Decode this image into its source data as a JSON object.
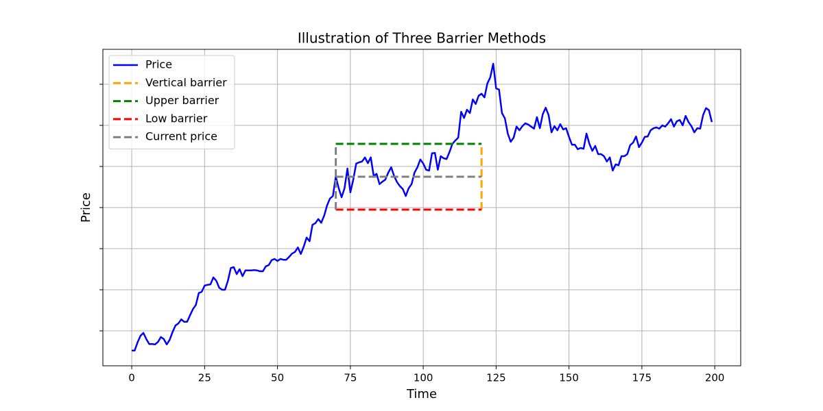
{
  "chart_data": {
    "type": "line",
    "title": "Illustration of Three Barrier Methods",
    "xlabel": "Time",
    "ylabel": "Price",
    "xlim": [
      -9.9,
      208.9
    ],
    "xticks": [
      0,
      25,
      50,
      75,
      100,
      125,
      150,
      175,
      200
    ],
    "ylim": [
      0.15,
      7.85
    ],
    "yticks": [
      1,
      2,
      3,
      4,
      5,
      6,
      7
    ],
    "grid": true,
    "legend": "upper left",
    "series": [
      {
        "name": "Price",
        "color": "#0000ff",
        "style": "solid",
        "x": [
          0,
          1,
          2,
          3,
          4,
          5,
          6,
          7,
          8,
          9,
          10,
          11,
          12,
          13,
          14,
          15,
          16,
          17,
          18,
          19,
          20,
          21,
          22,
          23,
          24,
          25,
          26,
          27,
          28,
          29,
          30,
          31,
          32,
          33,
          34,
          35,
          36,
          37,
          38,
          39,
          40,
          41,
          42,
          43,
          44,
          45,
          46,
          47,
          48,
          49,
          50,
          51,
          52,
          53,
          54,
          55,
          56,
          57,
          58,
          59,
          60,
          61,
          62,
          63,
          64,
          65,
          66,
          67,
          68,
          69,
          70,
          71,
          72,
          73,
          74,
          75,
          76,
          77,
          78,
          79,
          80,
          81,
          82,
          83,
          84,
          85,
          86,
          87,
          88,
          89,
          90,
          91,
          92,
          93,
          94,
          95,
          96,
          97,
          98,
          99,
          100,
          101,
          102,
          103,
          104,
          105,
          106,
          107,
          108,
          109,
          110,
          111,
          112,
          113,
          114,
          115,
          116,
          117,
          118,
          119,
          120,
          121,
          122,
          123,
          124,
          125,
          126,
          127,
          128,
          129,
          130,
          131,
          132,
          133,
          134,
          135,
          136,
          137,
          138,
          139,
          140,
          141,
          142,
          143,
          144,
          145,
          146,
          147,
          148,
          149,
          150,
          151,
          152,
          153,
          154,
          155,
          156,
          157,
          158,
          159,
          160,
          161,
          162,
          163,
          164,
          165,
          166,
          167,
          168,
          169,
          170,
          171,
          172,
          173,
          174,
          175,
          176,
          177,
          178,
          179,
          180,
          181,
          182,
          183,
          184,
          185,
          186,
          187,
          188,
          189,
          190,
          191,
          192,
          193,
          194,
          195,
          196,
          197,
          198,
          199
        ],
        "values": [
          0.52,
          0.52,
          0.72,
          0.88,
          0.95,
          0.8,
          0.68,
          0.68,
          0.67,
          0.73,
          0.85,
          0.8,
          0.67,
          0.78,
          0.97,
          1.13,
          1.18,
          1.28,
          1.22,
          1.22,
          1.38,
          1.53,
          1.63,
          1.92,
          1.95,
          2.1,
          2.12,
          2.13,
          2.3,
          2.22,
          2.05,
          2.0,
          2.0,
          2.22,
          2.53,
          2.55,
          2.38,
          2.5,
          2.33,
          2.47,
          2.47,
          2.47,
          2.48,
          2.47,
          2.45,
          2.45,
          2.57,
          2.6,
          2.72,
          2.75,
          2.7,
          2.75,
          2.73,
          2.73,
          2.8,
          2.88,
          2.92,
          3.03,
          2.87,
          3.05,
          3.27,
          3.18,
          3.58,
          3.62,
          3.72,
          3.63,
          3.8,
          4.05,
          4.22,
          4.28,
          4.75,
          4.47,
          4.25,
          4.47,
          4.95,
          4.37,
          4.68,
          5.07,
          5.1,
          5.12,
          5.22,
          5.08,
          5.22,
          4.77,
          4.82,
          4.57,
          4.63,
          4.68,
          4.85,
          4.98,
          4.77,
          4.62,
          4.52,
          4.45,
          4.28,
          4.47,
          4.57,
          4.85,
          4.98,
          5.17,
          5.07,
          4.92,
          4.9,
          5.32,
          5.33,
          4.92,
          5.25,
          5.2,
          5.18,
          5.35,
          5.55,
          5.63,
          5.7,
          6.33,
          6.18,
          6.38,
          6.3,
          6.63,
          6.52,
          6.72,
          6.77,
          6.68,
          7.02,
          7.17,
          7.5,
          6.9,
          6.87,
          6.3,
          6.17,
          5.8,
          5.6,
          5.7,
          5.97,
          5.88,
          5.98,
          6.05,
          6.02,
          5.97,
          5.92,
          6.2,
          5.93,
          6.27,
          6.43,
          6.25,
          5.83,
          5.98,
          5.88,
          6.03,
          5.9,
          5.93,
          5.72,
          5.53,
          5.53,
          5.42,
          5.45,
          5.43,
          5.8,
          5.55,
          5.38,
          5.5,
          5.3,
          5.3,
          5.25,
          5.12,
          5.22,
          4.9,
          5.05,
          5.03,
          5.25,
          5.25,
          5.3,
          5.52,
          5.58,
          5.73,
          5.47,
          5.58,
          5.72,
          5.73,
          5.88,
          5.93,
          5.95,
          5.92,
          6.0,
          5.97,
          6.05,
          6.15,
          5.97,
          6.1,
          6.13,
          6.0,
          6.23,
          6.08,
          5.98,
          5.83,
          5.93,
          5.92,
          6.25,
          6.42,
          6.37,
          6.08
        ]
      },
      {
        "name": "Vertical barrier",
        "color": "#ffa500",
        "style": "dashed",
        "x": [
          120,
          120
        ],
        "values": [
          3.95,
          5.55
        ]
      },
      {
        "name": "Upper barrier",
        "color": "#008000",
        "style": "dashed",
        "x": [
          70,
          120
        ],
        "values": [
          5.55,
          5.55
        ]
      },
      {
        "name": "Low barrier",
        "color": "#ff0000",
        "style": "dashed",
        "x": [
          70,
          120
        ],
        "values": [
          3.95,
          3.95
        ]
      },
      {
        "name": "Current price",
        "color": "#808080",
        "style": "dashed",
        "x": [
          70,
          70,
          null,
          70,
          120
        ],
        "values": [
          3.95,
          5.55,
          null,
          4.75,
          4.75
        ]
      }
    ]
  }
}
